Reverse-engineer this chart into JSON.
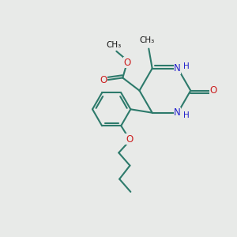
{
  "background_color": "#e8eae8",
  "bond_color": "#2d7a6b",
  "N_color": "#2222cc",
  "O_color": "#cc2020",
  "bond_width": 1.5,
  "figsize": [
    3.0,
    3.0
  ],
  "dpi": 100,
  "xlim": [
    0,
    10
  ],
  "ylim": [
    0,
    10
  ]
}
